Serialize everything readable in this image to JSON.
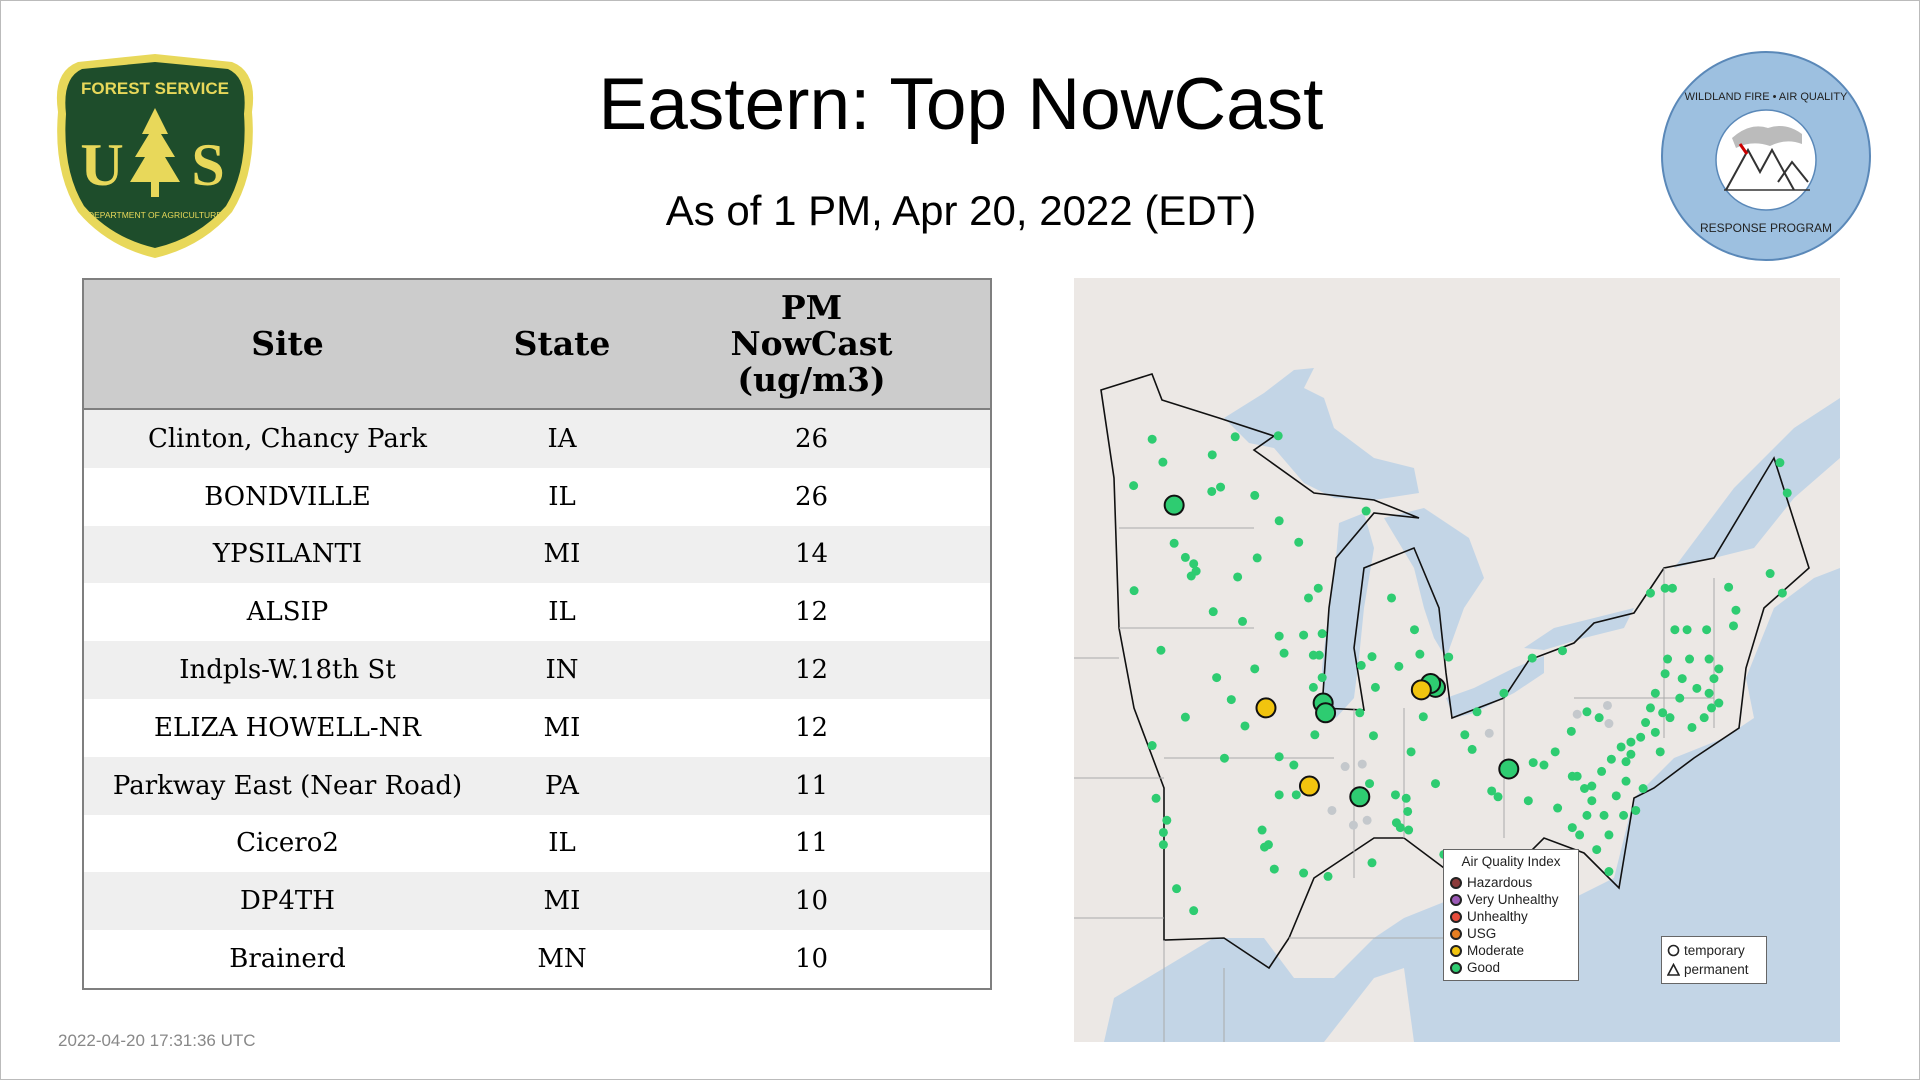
{
  "header": {
    "title": "Eastern: Top NowCast",
    "subtitle": "As of  1 PM, Apr 20, 2022 (EDT)"
  },
  "logos": {
    "left": {
      "top_text": "FOREST SERVICE",
      "letters": "U S",
      "bottom_text": "DEPARTMENT OF AGRICULTURE"
    },
    "right": {
      "top_text": "WILDLAND FIRE • AIR QUALITY",
      "bottom_text": "RESPONSE PROGRAM"
    }
  },
  "table": {
    "columns": [
      "Site",
      "State",
      "PM NowCast (ug/m3)"
    ],
    "column_lines": [
      [
        "Site"
      ],
      [
        "State"
      ],
      [
        "PM",
        "NowCast",
        "(ug/m3)"
      ]
    ],
    "rows": [
      {
        "site": "Clinton, Chancy Park",
        "state": "IA",
        "value": "26"
      },
      {
        "site": "BONDVILLE",
        "state": "IL",
        "value": "26"
      },
      {
        "site": "YPSILANTI",
        "state": "MI",
        "value": "14"
      },
      {
        "site": "ALSIP",
        "state": "IL",
        "value": "12"
      },
      {
        "site": "Indpls-W.18th St",
        "state": "IN",
        "value": "12"
      },
      {
        "site": "ELIZA HOWELL-NR",
        "state": "MI",
        "value": "12"
      },
      {
        "site": "Parkway East (Near Road)",
        "state": "PA",
        "value": "11"
      },
      {
        "site": "Cicero2",
        "state": "IL",
        "value": "11"
      },
      {
        "site": "DP4TH",
        "state": "MI",
        "value": "10"
      },
      {
        "site": "Brainerd",
        "state": "MN",
        "value": "10"
      }
    ]
  },
  "timestamp": "2022-04-20 17:31:36 UTC",
  "map": {
    "colors": {
      "land": "#ece8e5",
      "water": "#c3d5e6",
      "border": "#111111",
      "no_data": "#c4c8cc"
    },
    "aqi_legend": {
      "title": "Air Quality Index",
      "items": [
        {
          "label": "Hazardous",
          "color": "#8b3a3a"
        },
        {
          "label": "Very Unhealthy",
          "color": "#9b59b6"
        },
        {
          "label": "Unhealthy",
          "color": "#e74c3c"
        },
        {
          "label": "USG",
          "color": "#e67e22"
        },
        {
          "label": "Moderate",
          "color": "#f1c40f"
        },
        {
          "label": "Good",
          "color": "#2ecc71"
        }
      ]
    },
    "shape_legend": [
      {
        "label": "temporary",
        "icon": "circle"
      },
      {
        "label": "permanent",
        "icon": "triangle"
      }
    ]
  }
}
